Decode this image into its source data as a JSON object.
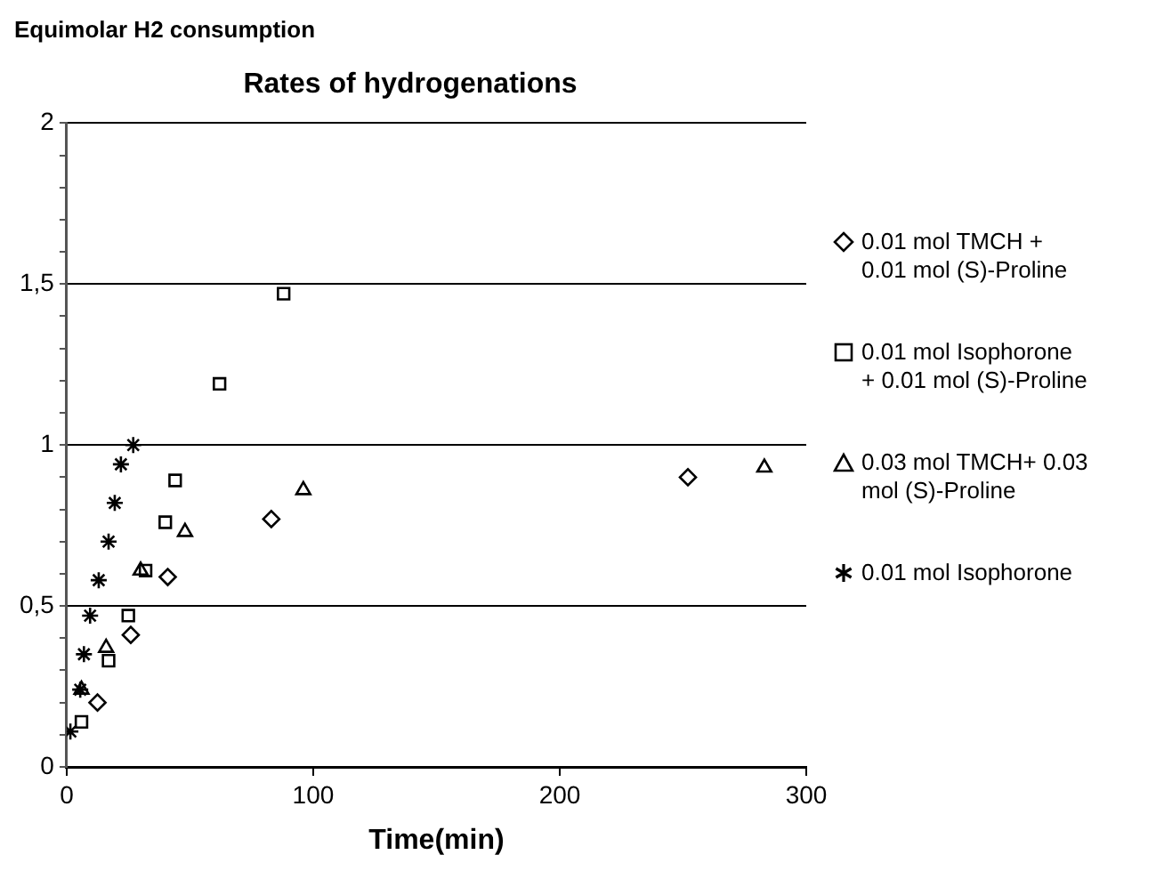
{
  "chart_data": {
    "type": "scatter",
    "title": "Rates of hydrogenations",
    "xlabel": "Time(min)",
    "ylabel": "Equimolar H2 consumption",
    "xlim": [
      0,
      300
    ],
    "xticks": [
      0,
      100,
      200,
      300
    ],
    "ylim": [
      0,
      2
    ],
    "yticks": [
      0,
      {
        "value": 0.1,
        "label": null
      },
      {
        "value": 0.2,
        "label": null
      },
      {
        "value": 0.3,
        "label": null
      },
      {
        "value": 0.4,
        "label": null
      },
      {
        "value": 0.5,
        "label": "0,5"
      },
      {
        "value": 0.6,
        "label": null
      },
      {
        "value": 0.7,
        "label": null
      },
      {
        "value": 0.8,
        "label": null
      },
      {
        "value": 0.9,
        "label": null
      },
      1,
      {
        "value": 1.1,
        "label": null
      },
      {
        "value": 1.2,
        "label": null
      },
      {
        "value": 1.3,
        "label": null
      },
      {
        "value": 1.4,
        "label": null
      },
      {
        "value": 1.5,
        "label": "1,5"
      },
      {
        "value": 1.6,
        "label": null
      },
      {
        "value": 1.7,
        "label": null
      },
      {
        "value": 1.8,
        "label": null
      },
      {
        "value": 1.9,
        "label": null
      },
      2
    ],
    "grid": "y",
    "legend": "right",
    "series": [
      {
        "name": "0.01 mol TMCH + 0.01 mol (S)-Proline",
        "color": "#000000",
        "marker": "diamond",
        "x": [
          12.5,
          26,
          41,
          83,
          252
        ],
        "values": [
          0.2,
          0.41,
          0.59,
          0.77,
          0.9
        ]
      },
      {
        "name": "0.01 mol Isophorone + 0.01 mol (S)-Proline",
        "color": "#000000",
        "marker": "square",
        "x": [
          6,
          17,
          25,
          32,
          40,
          44,
          62,
          88
        ],
        "values": [
          0.14,
          0.33,
          0.47,
          0.61,
          0.76,
          0.89,
          1.19,
          1.47
        ]
      },
      {
        "name": "0.03 mol TMCH+ 0.03 mol (S)-Proline",
        "color": "#000000",
        "marker": "triangle",
        "x": [
          6,
          16,
          30,
          48,
          96,
          283
        ],
        "values": [
          0.24,
          0.37,
          0.61,
          0.73,
          0.86,
          0.93
        ]
      },
      {
        "name": "0.01 mol Isophorone",
        "color": "#000000",
        "marker": "cross",
        "x": [
          1.5,
          5.5,
          7,
          9.5,
          13,
          17,
          19.5,
          22,
          27
        ],
        "values": [
          0.11,
          0.24,
          0.35,
          0.47,
          0.58,
          0.7,
          0.82,
          0.94,
          1.0
        ]
      }
    ]
  }
}
